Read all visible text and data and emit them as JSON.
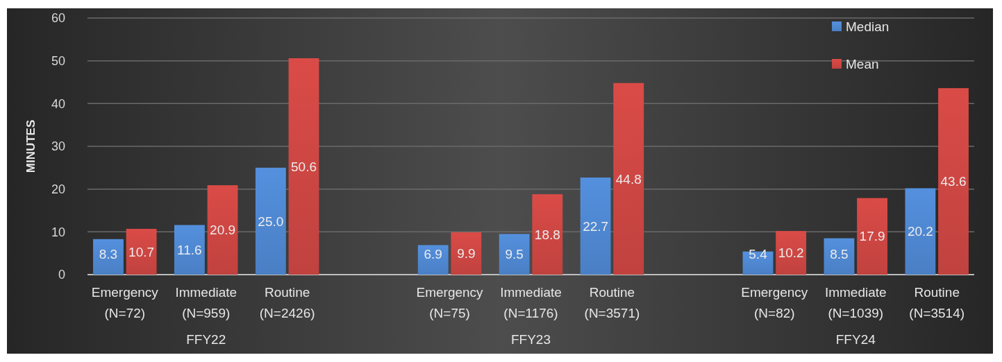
{
  "chart_data": {
    "type": "bar",
    "ylabel": "MINUTES",
    "categories": [
      "Emergency\n(N=72)",
      "Immediate\n(N=959)",
      "Routine\n(N=2426)",
      null,
      "Emergency\n(N=75)",
      "Immediate\n(N=1176)",
      "Routine\n(N=3571)",
      null,
      "Emergency\n(N=82)",
      "Immediate\n(N=1039)",
      "Routine\n(N=3514)"
    ],
    "series": [
      {
        "name": "Median",
        "color": "#4a7fc4",
        "values": [
          8.3,
          11.6,
          25.0,
          null,
          6.9,
          9.5,
          22.7,
          null,
          5.4,
          8.5,
          20.2
        ],
        "value_labels": [
          "8.3",
          "11.6",
          "25.0",
          null,
          "6.9",
          "9.5",
          "22.7",
          null,
          "5.4",
          "8.5",
          "20.2"
        ]
      },
      {
        "name": "Mean",
        "color": "#c0423f",
        "values": [
          10.7,
          20.9,
          50.6,
          null,
          9.9,
          18.8,
          44.8,
          null,
          10.2,
          17.9,
          43.6
        ],
        "value_labels": [
          "10.7",
          "20.9",
          "50.6",
          null,
          "9.9",
          "18.8",
          "44.8",
          null,
          "10.2",
          "17.9",
          "43.6"
        ]
      }
    ],
    "annotations": [
      "FFY22",
      "FFY23",
      "FFY24"
    ],
    "ylim": [
      0,
      60
    ],
    "yticks": [
      0,
      10,
      20,
      30,
      40,
      50,
      60
    ],
    "grid": "y",
    "legend": "top right"
  }
}
